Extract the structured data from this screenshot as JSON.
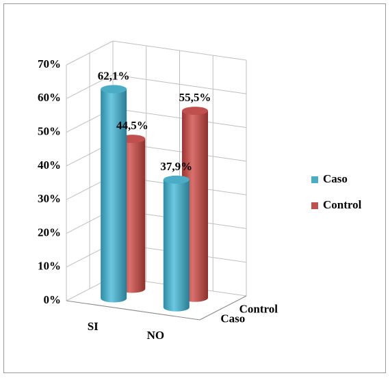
{
  "chart_data": {
    "type": "bar3d",
    "categories": [
      "SI",
      "NO"
    ],
    "series": [
      {
        "name": "Caso",
        "color": "#4bacc6",
        "values": [
          62.1,
          37.9
        ],
        "value_labels": [
          "62,1%",
          "37,9%"
        ]
      },
      {
        "name": "Control",
        "color": "#c0504d",
        "values": [
          44.5,
          55.5
        ],
        "value_labels": [
          "44,5%",
          "55,5%"
        ]
      }
    ],
    "ylim": [
      0,
      70
    ],
    "yticks": [
      {
        "value": 0,
        "label": "0%"
      },
      {
        "value": 10,
        "label": "10%"
      },
      {
        "value": 20,
        "label": "20%"
      },
      {
        "value": 30,
        "label": "30%"
      },
      {
        "value": 40,
        "label": "40%"
      },
      {
        "value": 50,
        "label": "50%"
      },
      {
        "value": 60,
        "label": "60%"
      },
      {
        "value": 70,
        "label": "70%"
      }
    ],
    "grid": true,
    "legend": "right"
  }
}
